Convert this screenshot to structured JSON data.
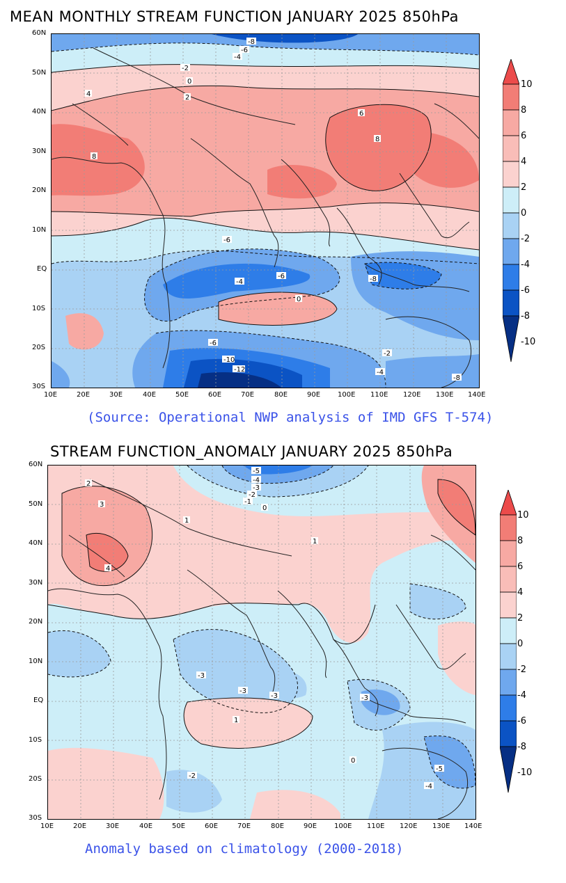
{
  "panels": [
    {
      "title": "MEAN MONTHLY STREAM FUNCTION JANUARY 2025 850hPa",
      "caption": "(Source: Operational NWP analysis of IMD GFS T-574)",
      "contour_labels": [
        "-8",
        "-6",
        "-4",
        "-2",
        "0",
        "2",
        "4",
        "6",
        "8",
        "-10",
        "-12"
      ],
      "colorbar_ticks": [
        "10",
        "8",
        "6",
        "4",
        "2",
        "0",
        "-2",
        "-4",
        "-6",
        "-8",
        "-10"
      ]
    },
    {
      "title": "STREAM FUNCTION_ANOMALY JANUARY 2025 850hPa",
      "caption": "Anomaly based on climatology (2000-2018)",
      "contour_labels": [
        "-5",
        "-4",
        "-3",
        "-2",
        "-1",
        "0",
        "1",
        "2",
        "3",
        "4"
      ],
      "colorbar_ticks": [
        "10",
        "8",
        "6",
        "4",
        "2",
        "0",
        "-2",
        "-4",
        "-6",
        "-8",
        "-10"
      ]
    }
  ],
  "axes": {
    "lat_labels": [
      "60N",
      "50N",
      "40N",
      "30N",
      "20N",
      "10N",
      "EQ",
      "10S",
      "20S",
      "30S"
    ],
    "lon_labels": [
      "10E",
      "20E",
      "30E",
      "40E",
      "50E",
      "60E",
      "70E",
      "80E",
      "90E",
      "100E",
      "110E",
      "120E",
      "130E",
      "140E"
    ]
  },
  "colorbar_colors": [
    "#ec4b4b",
    "#f27d76",
    "#f7a9a3",
    "#fbd2cf",
    "#cdeef8",
    "#a9d2f4",
    "#6fa8ee",
    "#2e7de8",
    "#0b53c4",
    "#062f84"
  ],
  "palette": {
    "strong_pos": "#f27d76",
    "pos": "#f7a9a3",
    "weak_pos": "#fbd2cf",
    "weak_neg": "#cdeef8",
    "neg": "#a9d2f4",
    "mid_neg": "#6fa8ee",
    "strong_neg": "#2e7de8",
    "deep_neg": "#0b53c4",
    "deepest_neg": "#062f84",
    "grid": "#9a9a9a",
    "caption": "#3a52e8"
  }
}
